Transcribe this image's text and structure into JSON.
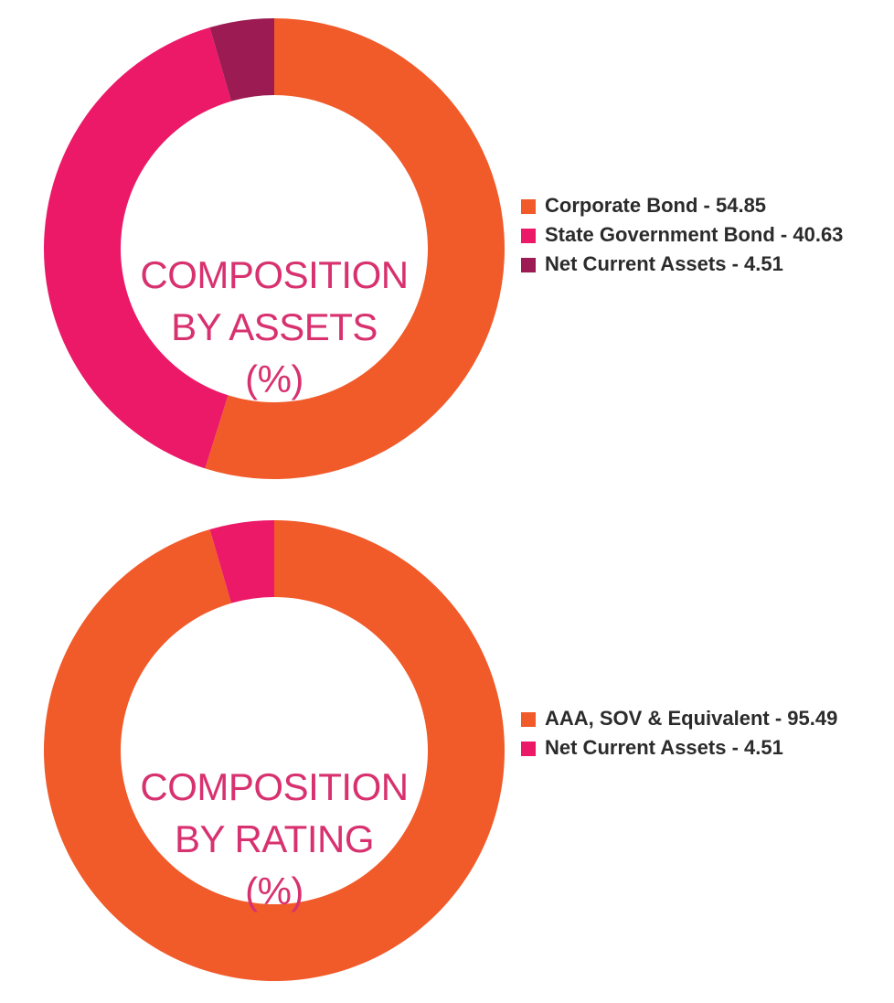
{
  "chart_data": [
    {
      "type": "pie",
      "variant": "donut",
      "title_lines": [
        "COMPOSITION",
        "BY ASSETS",
        "(%)"
      ],
      "legend_position": "right",
      "slices": [
        {
          "label": "Corporate Bond",
          "value": 54.85,
          "color": "#f15a29"
        },
        {
          "label": "State Government Bond",
          "value": 40.63,
          "color": "#eb1968"
        },
        {
          "label": "Net Current Assets",
          "value": 4.51,
          "color": "#9b1b52"
        }
      ]
    },
    {
      "type": "pie",
      "variant": "donut",
      "title_lines": [
        "COMPOSITION",
        "BY RATING",
        "(%)"
      ],
      "legend_position": "right",
      "slices": [
        {
          "label": "AAA, SOV & Equivalent",
          "value": 95.49,
          "color": "#f15a29"
        },
        {
          "label": "Net Current Assets",
          "value": 4.51,
          "color": "#eb1968"
        }
      ]
    }
  ],
  "colors": {
    "title": "#d8316f",
    "legend_text": "#2b2b2b"
  },
  "legend_separator": " - "
}
